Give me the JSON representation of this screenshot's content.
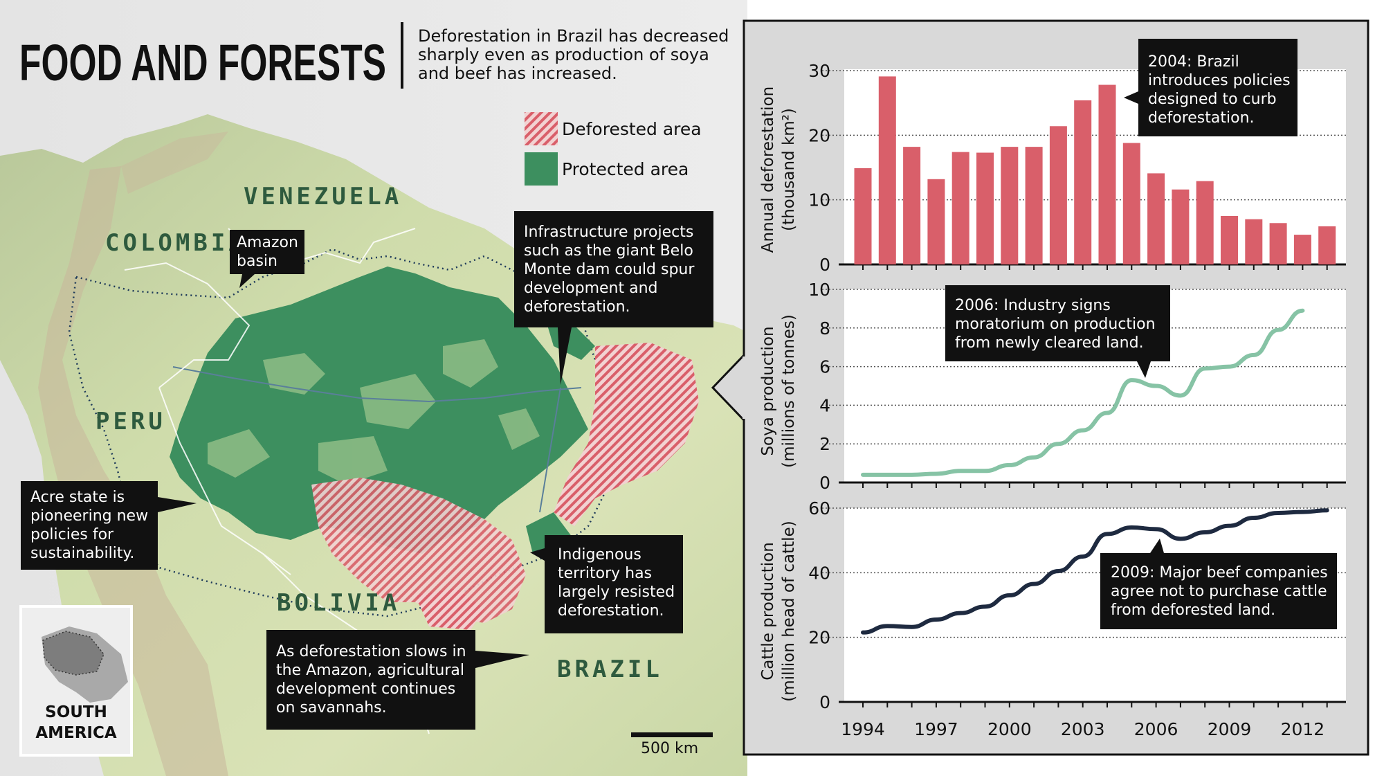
{
  "header": {
    "title": "FOOD AND FORESTS",
    "subtitle_lines": [
      "Deforestation in Brazil has decreased",
      "sharply even as production of soya",
      "and beef has increased."
    ]
  },
  "legend": {
    "deforested": "Deforested area",
    "protected": "Protected area"
  },
  "map": {
    "countries": {
      "venezuela": "VENEZUELA",
      "colombia": "COLOMBIA",
      "peru": "PERU",
      "bolivia": "BOLIVIA",
      "brazil": "BRAZIL"
    },
    "callouts": {
      "amazon_basin": [
        "Amazon",
        "basin"
      ],
      "infrastructure": [
        "Infrastructure projects",
        "such as the giant Belo",
        "Monte dam could spur",
        "development and",
        "deforestation."
      ],
      "acre": [
        "Acre state is",
        "pioneering new",
        "policies for",
        "sustainability."
      ],
      "indigenous": [
        "Indigenous",
        "territory has",
        "largely resisted",
        "deforestation."
      ],
      "savannahs": [
        "As deforestation slows in",
        "the Amazon, agricultural",
        "development continues",
        "on savannahs."
      ]
    },
    "inset": [
      "SOUTH",
      "AMERICA"
    ],
    "scale": "500 km"
  },
  "colors": {
    "bar": "#d95f6a",
    "soya": "#86c3a5",
    "cattle": "#1e2a40",
    "protected": "#3d8f5f",
    "dark": "#111111"
  },
  "chart_data": [
    {
      "type": "bar",
      "ylabel": "Annual deforestation (thousand km²)",
      "ylim": [
        0,
        30
      ],
      "yticks": [
        0,
        10,
        20,
        30
      ],
      "x": [
        1994,
        1995,
        1996,
        1997,
        1998,
        1999,
        2000,
        2001,
        2002,
        2003,
        2004,
        2005,
        2006,
        2007,
        2008,
        2009,
        2010,
        2011,
        2012,
        2013
      ],
      "values": [
        14.9,
        29.1,
        18.2,
        13.2,
        17.4,
        17.3,
        18.2,
        18.2,
        21.4,
        25.4,
        27.8,
        18.8,
        14.1,
        11.6,
        12.9,
        7.5,
        7.0,
        6.4,
        4.6,
        5.9
      ],
      "annotation": [
        "2004: Brazil",
        "introduces policies",
        "designed to curb",
        "deforestation."
      ]
    },
    {
      "type": "line",
      "ylabel": "Soya production (millions of tonnes)",
      "ylim": [
        0,
        10
      ],
      "yticks": [
        0,
        2,
        4,
        6,
        8,
        10
      ],
      "x": [
        1994,
        1995,
        1996,
        1997,
        1998,
        1999,
        2000,
        2001,
        2002,
        2003,
        2004,
        2005,
        2006,
        2007,
        2008,
        2009,
        2010,
        2011,
        2012
      ],
      "values": [
        0.4,
        0.4,
        0.4,
        0.45,
        0.6,
        0.6,
        0.9,
        1.3,
        2.0,
        2.7,
        3.6,
        5.3,
        5.0,
        4.5,
        5.9,
        6.0,
        6.6,
        7.9,
        8.9
      ],
      "annotation": [
        "2006: Industry signs",
        "moratorium on production",
        "from newly cleared land."
      ]
    },
    {
      "type": "line",
      "ylabel": "Cattle production (million head of cattle)",
      "ylim": [
        0,
        60
      ],
      "yticks": [
        0,
        20,
        40,
        60
      ],
      "x": [
        1994,
        1995,
        1996,
        1997,
        1998,
        1999,
        2000,
        2001,
        2002,
        2003,
        2004,
        2005,
        2006,
        2007,
        2008,
        2009,
        2010,
        2011,
        2012,
        2013
      ],
      "values": [
        21.5,
        23.5,
        23.2,
        25.5,
        27.5,
        29.5,
        33,
        36.5,
        40.5,
        45,
        52,
        54,
        53.5,
        50.5,
        52.5,
        54.5,
        57,
        58.5,
        58.8,
        59.3
      ],
      "xtick_labels": [
        "1994",
        "1997",
        "2000",
        "2003",
        "2006",
        "2009",
        "2012"
      ],
      "annotation": [
        "2009: Major beef companies",
        "agree not to purchase cattle",
        "from deforested land."
      ]
    }
  ]
}
